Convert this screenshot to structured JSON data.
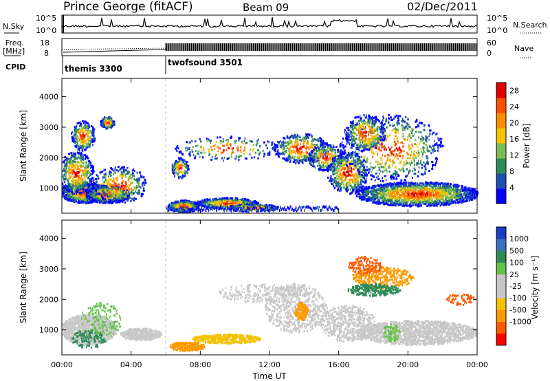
{
  "header": {
    "station": "Prince George (fitACF)",
    "beam": "Beam 09",
    "date": "02/Dec/2011"
  },
  "strip_labels": {
    "nsky": "N.Sky",
    "freq": "Freq.",
    "freq_unit": "[MHz]",
    "cpid": "CPID",
    "nsearch": "N.Search",
    "nave": "Nave",
    "nsky_ticks": [
      "10^5",
      "10^0"
    ],
    "nsearch_ticks": [
      "10^5",
      "10^0"
    ],
    "freq_ticks": [
      "18",
      "8"
    ],
    "nave_ticks": [
      "60",
      "0"
    ]
  },
  "cpid_modes": [
    {
      "label": "themis 3300",
      "start_hour": 0
    },
    {
      "label": "twofsound 3501",
      "start_hour": 6
    }
  ],
  "colors": {
    "power_scale": [
      "#0000ff",
      "#1f4fb4",
      "#2e8b57",
      "#7dbb55",
      "#f5c400",
      "#ff8c00",
      "#ff5000",
      "#e00000"
    ],
    "velocity_scale": [
      "#ff0000",
      "#ff5a00",
      "#ff9900",
      "#f2c200",
      "#c8c8c8",
      "#c8c8c8",
      "#66c34a",
      "#2e8b57",
      "#3b6fc0",
      "#1a3cbf"
    ]
  },
  "chart_data": [
    {
      "type": "heatmap",
      "name": "power-panel",
      "xlabel": "",
      "ylabel": "Slant Range [km]",
      "xlim_hours": [
        0,
        24
      ],
      "ylim_km": [
        180,
        4600
      ],
      "ytick_labels": [
        "1000",
        "2000",
        "3000",
        "4000"
      ],
      "colorbar": {
        "label": "Power [dB]",
        "tick_labels": [
          "4",
          "8",
          "12",
          "16",
          "20",
          "24",
          "28"
        ],
        "range": [
          0,
          30
        ]
      }
    },
    {
      "type": "heatmap",
      "name": "velocity-panel",
      "xlabel": "Time UT",
      "ylabel": "Slant Range [km]",
      "xlim_hours": [
        0,
        24
      ],
      "ylim_km": [
        180,
        4600
      ],
      "xtick_labels": [
        "00:00",
        "04:00",
        "08:00",
        "12:00",
        "16:00",
        "20:00",
        "00:00"
      ],
      "ytick_labels": [
        "1000",
        "2000",
        "3000",
        "4000"
      ],
      "colorbar": {
        "label": "Velocity [m s⁻¹]",
        "tick_labels": [
          "1000",
          "500",
          "100",
          "25",
          "-25",
          "-100",
          "-500",
          "-1000"
        ]
      }
    }
  ]
}
